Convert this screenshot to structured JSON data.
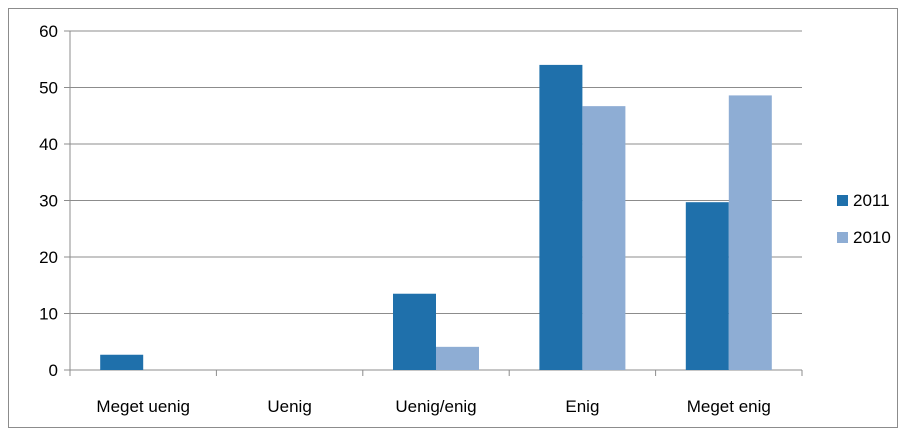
{
  "chart_data": {
    "type": "bar",
    "title": "",
    "xlabel": "",
    "ylabel": "",
    "ylim": [
      0,
      60
    ],
    "yticks": [
      0,
      10,
      20,
      30,
      40,
      50,
      60
    ],
    "categories": [
      "Meget uenig",
      "Uenig",
      "Uenig/enig",
      "Enig",
      "Meget enig"
    ],
    "series": [
      {
        "name": "2011",
        "color": "#1f70ab",
        "values": [
          2.7,
          0,
          13.5,
          54,
          29.7
        ]
      },
      {
        "name": "2010",
        "color": "#8eadd4",
        "values": [
          0,
          0,
          4.1,
          46.7,
          48.6
        ]
      }
    ],
    "grid": true,
    "legend": "right"
  }
}
